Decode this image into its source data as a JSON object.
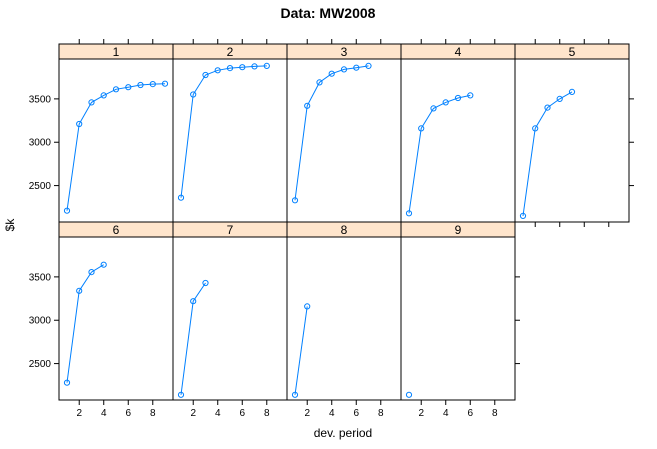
{
  "chart_data": {
    "type": "line",
    "title": "Data: MW2008",
    "xlabel": "dev. period",
    "ylabel": "$k",
    "xlim": [
      0.35,
      9.65
    ],
    "ylim": [
      2080,
      3960
    ],
    "x_ticks": [
      2,
      4,
      6,
      8
    ],
    "y_ticks": [
      2500,
      3000,
      3500
    ],
    "panels": [
      {
        "label": "1",
        "x": [
          1,
          2,
          3,
          4,
          5,
          6,
          7,
          8,
          9
        ],
        "y": [
          2210,
          3210,
          3460,
          3540,
          3610,
          3635,
          3660,
          3670,
          3675
        ]
      },
      {
        "label": "2",
        "x": [
          1,
          2,
          3,
          4,
          5,
          6,
          7,
          8
        ],
        "y": [
          2360,
          3550,
          3775,
          3830,
          3855,
          3865,
          3875,
          3880
        ]
      },
      {
        "label": "3",
        "x": [
          1,
          2,
          3,
          4,
          5,
          6,
          7
        ],
        "y": [
          2330,
          3420,
          3690,
          3790,
          3840,
          3860,
          3880
        ]
      },
      {
        "label": "4",
        "x": [
          1,
          2,
          3,
          4,
          5,
          6
        ],
        "y": [
          2180,
          3160,
          3390,
          3460,
          3510,
          3540
        ]
      },
      {
        "label": "5",
        "x": [
          1,
          2,
          3,
          4,
          5
        ],
        "y": [
          2150,
          3160,
          3400,
          3500,
          3580
        ]
      },
      {
        "label": "6",
        "x": [
          1,
          2,
          3,
          4
        ],
        "y": [
          2280,
          3340,
          3555,
          3640
        ]
      },
      {
        "label": "7",
        "x": [
          1,
          2,
          3
        ],
        "y": [
          2140,
          3220,
          3430
        ]
      },
      {
        "label": "8",
        "x": [
          1,
          2
        ],
        "y": [
          2140,
          3160
        ]
      },
      {
        "label": "9",
        "x": [
          1
        ],
        "y": [
          2140
        ]
      }
    ],
    "layout": {
      "columns": 5,
      "rows": 2
    },
    "colors": {
      "series": "#0080ff",
      "strip": "#ffe5cc"
    }
  }
}
